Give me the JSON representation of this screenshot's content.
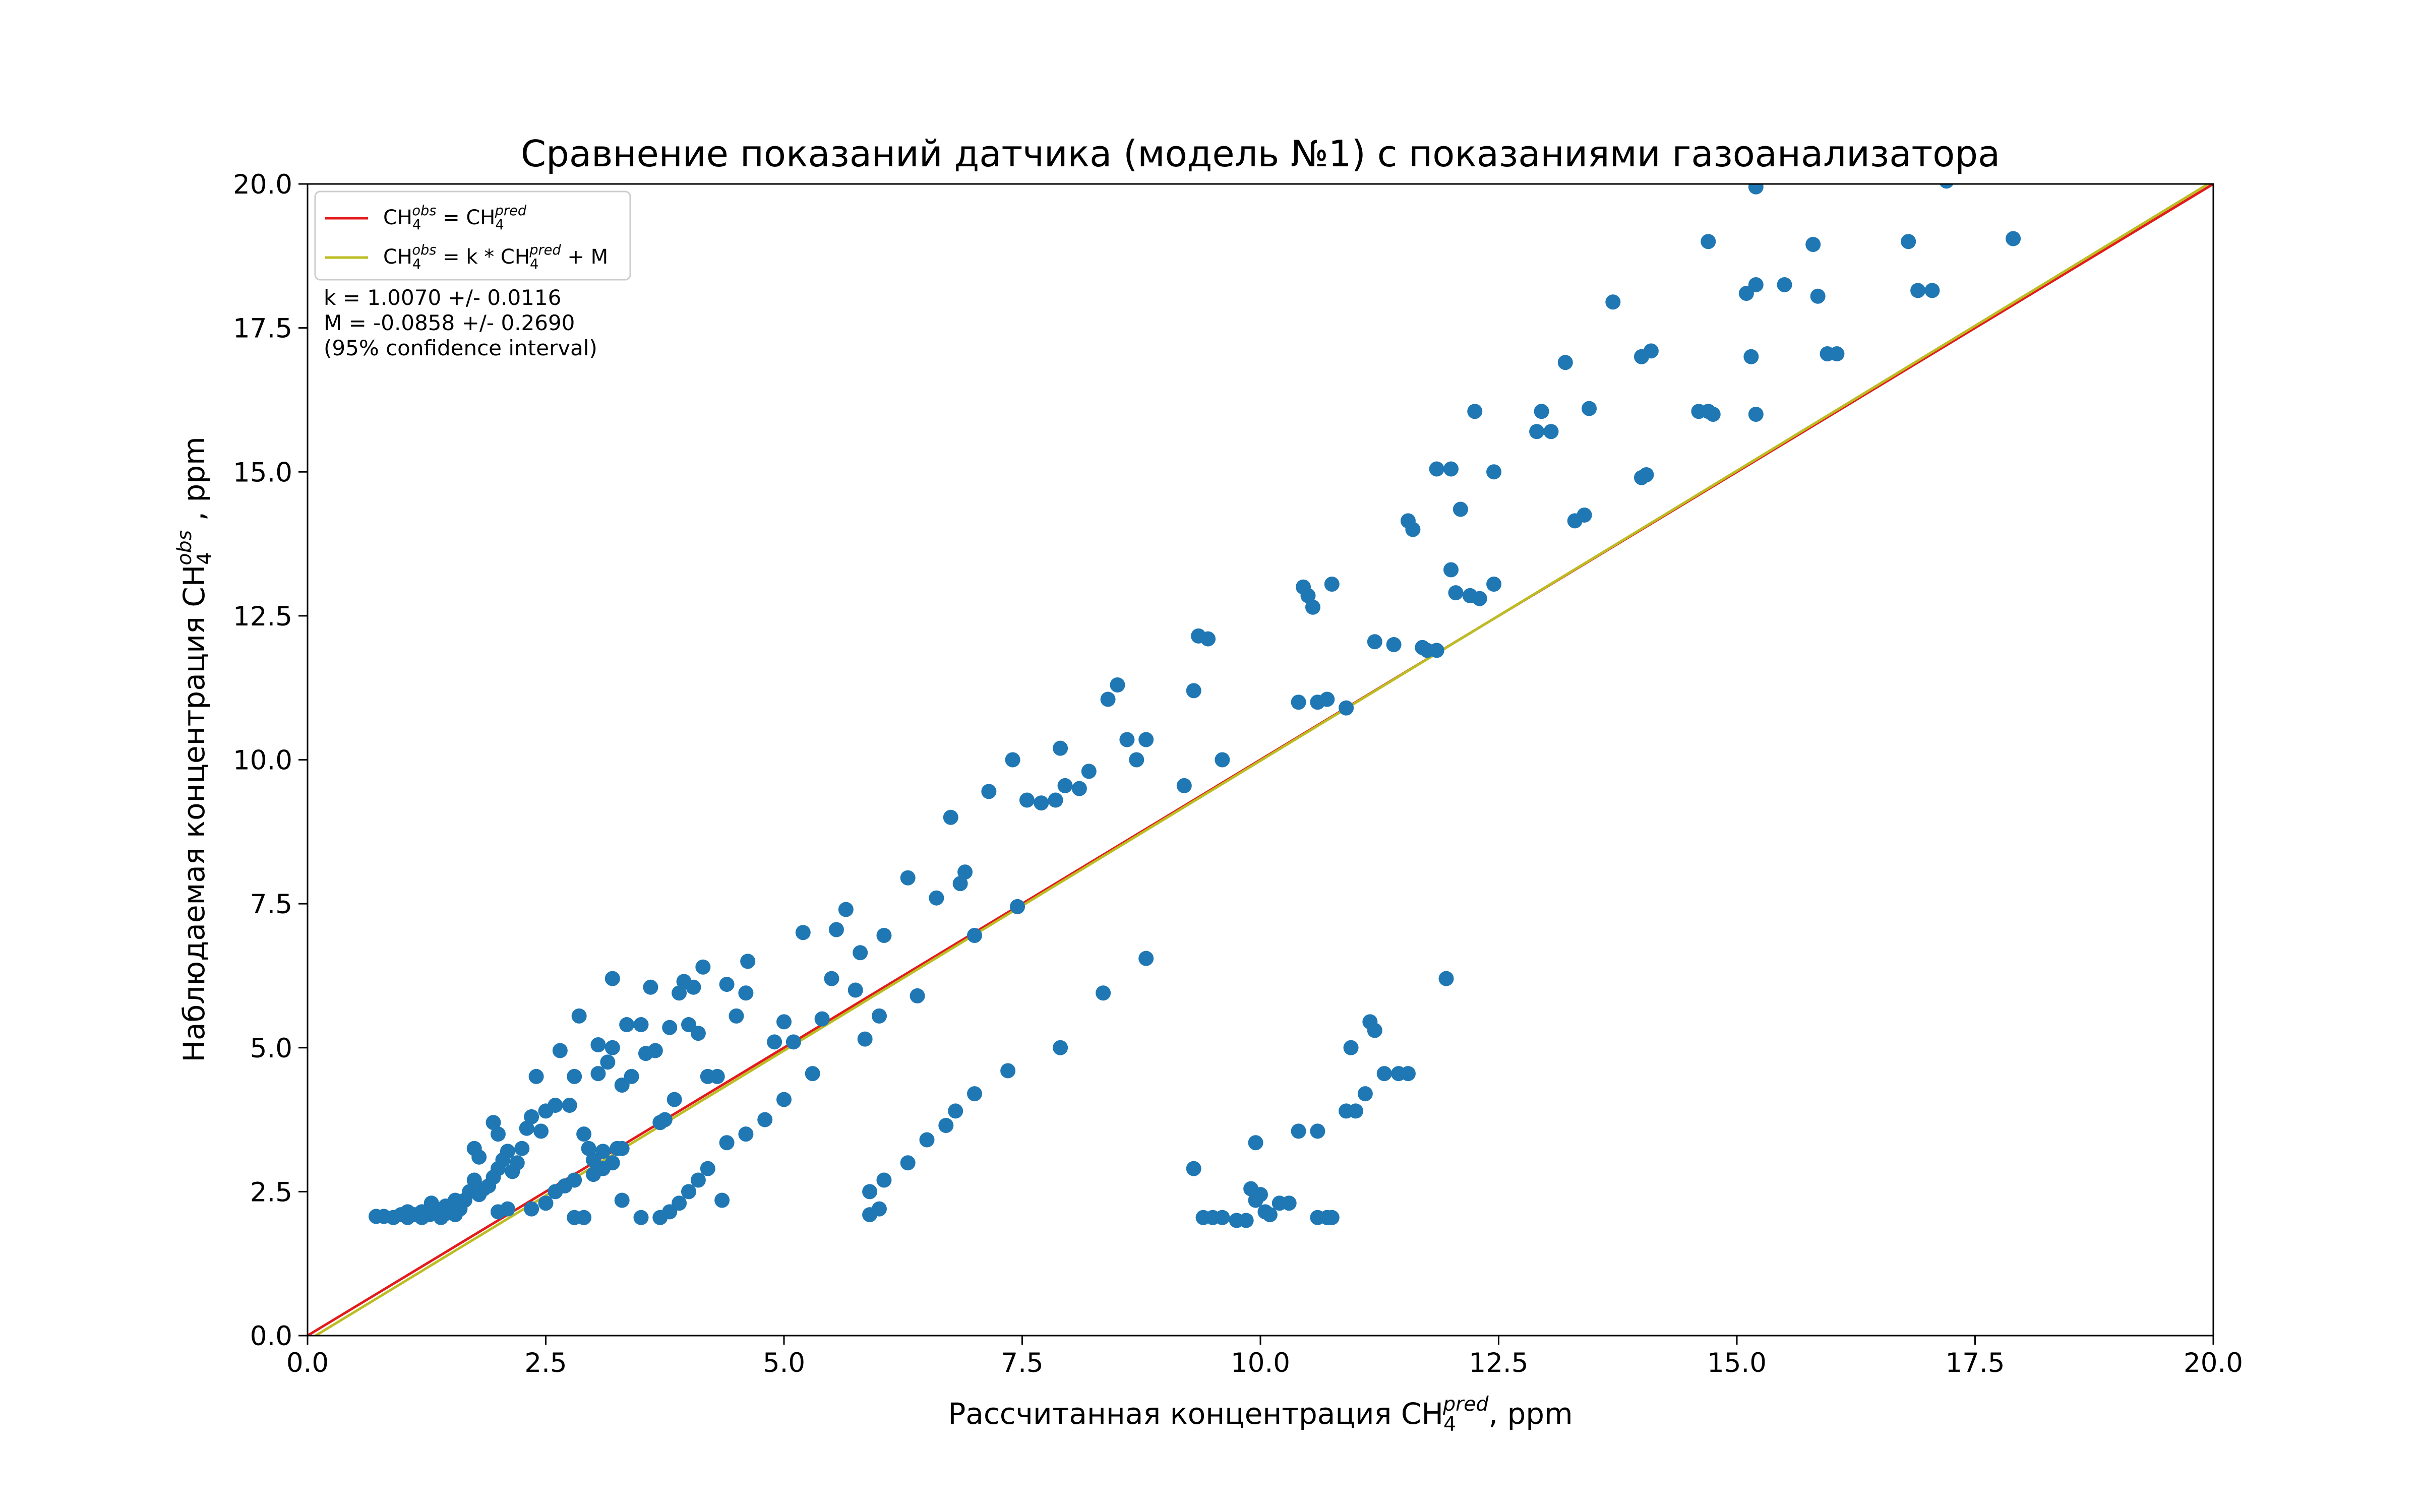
{
  "chart_data": {
    "type": "scatter",
    "title": "Сравнение показаний датчика (модель №1) с показаниями газоанализатора",
    "xlabel": {
      "prefix": "Рассчитанная концентрация CH",
      "sub": "4",
      "sup": "pred",
      "suffix": ", ppm"
    },
    "ylabel": {
      "prefix": "Наблюдаемая концентрация CH",
      "sub": "4",
      "sup": "obs",
      "suffix": " , ppm"
    },
    "xlim": [
      0,
      20
    ],
    "ylim": [
      0,
      20
    ],
    "xticks": [
      0,
      2.5,
      5,
      7.5,
      10,
      12.5,
      15,
      17.5,
      20
    ],
    "yticks": [
      0,
      2.5,
      5,
      7.5,
      10,
      12.5,
      15,
      17.5,
      20
    ],
    "xtick_labels": [
      "0.0",
      "2.5",
      "5.0",
      "7.5",
      "10.0",
      "12.5",
      "15.0",
      "17.5",
      "20.0"
    ],
    "ytick_labels": [
      "0.0",
      "2.5",
      "5.0",
      "7.5",
      "10.0",
      "12.5",
      "15.0",
      "17.5",
      "20.0"
    ],
    "grid": false,
    "legend_position": "top-left",
    "colors": {
      "points": "#1f77b4",
      "identity_line": "#e31a1c",
      "fit_line": "#bcbd22"
    },
    "legend": [
      {
        "kind": "identity",
        "parts": [
          {
            "t": "CH"
          },
          {
            "t": "4",
            "sub": true
          },
          {
            "t": "obs",
            "sup": true
          },
          {
            "t": " = CH"
          },
          {
            "t": "4",
            "sub": true
          },
          {
            "t": "pred",
            "sup": true
          }
        ]
      },
      {
        "kind": "fit",
        "parts": [
          {
            "t": "CH"
          },
          {
            "t": "4",
            "sub": true
          },
          {
            "t": "obs",
            "sup": true
          },
          {
            "t": " = k * CH"
          },
          {
            "t": "4",
            "sub": true
          },
          {
            "t": "pred",
            "sup": true
          },
          {
            "t": " + M"
          }
        ]
      }
    ],
    "lines": [
      {
        "kind": "identity",
        "k": 1.0,
        "m": 0.0
      },
      {
        "kind": "fit",
        "k": 1.007,
        "m": -0.0858
      }
    ],
    "annotations": [
      "k = 1.0070 +/- 0.0116",
      "M = -0.0858 +/- 0.2690",
      "(95% confidence interval)"
    ],
    "points": [
      [
        0.72,
        2.07
      ],
      [
        0.8,
        2.07
      ],
      [
        0.9,
        2.05
      ],
      [
        0.98,
        2.1
      ],
      [
        1.05,
        2.15
      ],
      [
        1.12,
        2.1
      ],
      [
        1.2,
        2.15
      ],
      [
        1.28,
        2.1
      ],
      [
        1.35,
        2.2
      ],
      [
        1.4,
        2.05
      ],
      [
        1.45,
        2.12
      ],
      [
        1.5,
        2.25
      ],
      [
        1.55,
        2.1
      ],
      [
        1.6,
        2.2
      ],
      [
        1.65,
        2.35
      ],
      [
        1.7,
        2.5
      ],
      [
        1.75,
        2.7
      ],
      [
        1.8,
        2.45
      ],
      [
        1.85,
        2.55
      ],
      [
        1.9,
        2.6
      ],
      [
        1.95,
        2.75
      ],
      [
        2.0,
        2.9
      ],
      [
        2.05,
        3.05
      ],
      [
        2.1,
        3.2
      ],
      [
        1.75,
        3.25
      ],
      [
        1.8,
        3.1
      ],
      [
        1.95,
        3.7
      ],
      [
        2.0,
        3.5
      ],
      [
        2.15,
        2.85
      ],
      [
        2.2,
        3.0
      ],
      [
        2.25,
        3.25
      ],
      [
        2.3,
        3.6
      ],
      [
        2.35,
        3.8
      ],
      [
        2.4,
        4.5
      ],
      [
        2.45,
        3.55
      ],
      [
        2.5,
        3.9
      ],
      [
        2.6,
        4.0
      ],
      [
        2.65,
        4.95
      ],
      [
        2.75,
        4.0
      ],
      [
        2.8,
        4.5
      ],
      [
        2.85,
        5.55
      ],
      [
        2.9,
        3.5
      ],
      [
        2.95,
        3.25
      ],
      [
        3.0,
        3.05
      ],
      [
        3.05,
        4.55
      ],
      [
        3.1,
        3.2
      ],
      [
        3.15,
        4.75
      ],
      [
        3.2,
        6.2
      ],
      [
        3.25,
        3.25
      ],
      [
        3.3,
        4.35
      ],
      [
        3.35,
        5.4
      ],
      [
        3.4,
        4.5
      ],
      [
        3.5,
        5.4
      ],
      [
        3.55,
        4.9
      ],
      [
        3.6,
        6.05
      ],
      [
        3.65,
        4.95
      ],
      [
        3.7,
        3.7
      ],
      [
        3.75,
        3.75
      ],
      [
        3.8,
        5.35
      ],
      [
        3.85,
        4.1
      ],
      [
        3.9,
        5.95
      ],
      [
        3.95,
        6.15
      ],
      [
        4.0,
        5.4
      ],
      [
        4.05,
        6.05
      ],
      [
        4.1,
        5.25
      ],
      [
        4.15,
        6.4
      ],
      [
        4.2,
        4.5
      ],
      [
        4.3,
        4.5
      ],
      [
        4.4,
        6.1
      ],
      [
        4.5,
        5.55
      ],
      [
        4.6,
        5.95
      ],
      [
        4.62,
        6.5
      ],
      [
        3.05,
        5.05
      ],
      [
        3.2,
        5.0
      ],
      [
        2.9,
        2.05
      ],
      [
        2.8,
        2.05
      ],
      [
        3.3,
        2.35
      ],
      [
        3.5,
        2.05
      ],
      [
        3.7,
        2.05
      ],
      [
        3.8,
        2.15
      ],
      [
        3.9,
        2.3
      ],
      [
        4.0,
        2.5
      ],
      [
        4.1,
        2.7
      ],
      [
        4.2,
        2.9
      ],
      [
        4.35,
        2.35
      ],
      [
        4.4,
        3.35
      ],
      [
        4.6,
        3.5
      ],
      [
        4.8,
        3.75
      ],
      [
        4.9,
        5.1
      ],
      [
        5.0,
        4.1
      ],
      [
        5.0,
        5.45
      ],
      [
        5.1,
        5.1
      ],
      [
        5.2,
        7.0
      ],
      [
        5.3,
        4.55
      ],
      [
        5.4,
        5.5
      ],
      [
        5.5,
        6.2
      ],
      [
        5.55,
        7.05
      ],
      [
        5.65,
        7.4
      ],
      [
        5.75,
        6.0
      ],
      [
        5.8,
        6.65
      ],
      [
        5.85,
        5.15
      ],
      [
        5.9,
        2.1
      ],
      [
        6.0,
        2.2
      ],
      [
        5.9,
        2.5
      ],
      [
        6.05,
        2.7
      ],
      [
        6.0,
        5.55
      ],
      [
        6.05,
        6.95
      ],
      [
        6.3,
        7.95
      ],
      [
        6.3,
        3.0
      ],
      [
        6.4,
        5.9
      ],
      [
        6.5,
        3.4
      ],
      [
        6.6,
        7.6
      ],
      [
        6.7,
        3.65
      ],
      [
        6.75,
        9.0
      ],
      [
        6.8,
        3.9
      ],
      [
        6.85,
        7.85
      ],
      [
        6.9,
        8.05
      ],
      [
        7.0,
        4.2
      ],
      [
        7.0,
        6.95
      ],
      [
        7.15,
        9.45
      ],
      [
        7.35,
        4.6
      ],
      [
        7.4,
        10.0
      ],
      [
        7.45,
        7.45
      ],
      [
        7.55,
        9.3
      ],
      [
        7.7,
        9.25
      ],
      [
        7.85,
        9.3
      ],
      [
        7.9,
        5.0
      ],
      [
        7.9,
        10.2
      ],
      [
        7.95,
        9.55
      ],
      [
        8.1,
        9.5
      ],
      [
        8.2,
        9.8
      ],
      [
        8.35,
        5.95
      ],
      [
        8.4,
        11.05
      ],
      [
        8.5,
        11.3
      ],
      [
        8.6,
        10.35
      ],
      [
        8.7,
        10.0
      ],
      [
        8.8,
        10.35
      ],
      [
        8.8,
        6.55
      ],
      [
        9.2,
        9.55
      ],
      [
        9.3,
        2.9
      ],
      [
        9.35,
        12.15
      ],
      [
        9.4,
        2.05
      ],
      [
        9.45,
        12.1
      ],
      [
        9.5,
        2.05
      ],
      [
        9.6,
        2.05
      ],
      [
        9.3,
        11.2
      ],
      [
        9.6,
        10.0
      ],
      [
        9.75,
        2.0
      ],
      [
        9.85,
        2.0
      ],
      [
        9.9,
        2.55
      ],
      [
        9.95,
        2.35
      ],
      [
        9.95,
        3.35
      ],
      [
        10.0,
        2.45
      ],
      [
        10.05,
        2.15
      ],
      [
        10.1,
        2.1
      ],
      [
        10.2,
        2.3
      ],
      [
        10.3,
        2.3
      ],
      [
        10.4,
        3.55
      ],
      [
        10.4,
        11.0
      ],
      [
        10.45,
        13.0
      ],
      [
        10.5,
        12.85
      ],
      [
        10.55,
        12.65
      ],
      [
        10.6,
        3.55
      ],
      [
        10.6,
        11.0
      ],
      [
        10.7,
        11.05
      ],
      [
        10.75,
        13.05
      ],
      [
        10.6,
        2.05
      ],
      [
        10.7,
        2.05
      ],
      [
        10.75,
        2.05
      ],
      [
        10.9,
        3.9
      ],
      [
        10.9,
        10.9
      ],
      [
        10.95,
        5.0
      ],
      [
        11.0,
        3.9
      ],
      [
        11.1,
        4.2
      ],
      [
        11.15,
        5.45
      ],
      [
        11.2,
        5.3
      ],
      [
        11.2,
        12.05
      ],
      [
        11.3,
        4.55
      ],
      [
        11.4,
        12.0
      ],
      [
        11.45,
        4.55
      ],
      [
        11.55,
        4.55
      ],
      [
        11.55,
        14.15
      ],
      [
        11.6,
        14.0
      ],
      [
        11.7,
        11.95
      ],
      [
        11.75,
        11.9
      ],
      [
        11.85,
        15.05
      ],
      [
        11.85,
        11.9
      ],
      [
        11.95,
        6.2
      ],
      [
        12.0,
        13.3
      ],
      [
        12.0,
        15.05
      ],
      [
        12.05,
        12.9
      ],
      [
        12.1,
        14.35
      ],
      [
        12.2,
        12.85
      ],
      [
        12.25,
        16.05
      ],
      [
        12.3,
        12.8
      ],
      [
        12.45,
        15.0
      ],
      [
        12.45,
        13.05
      ],
      [
        12.9,
        15.7
      ],
      [
        12.95,
        16.05
      ],
      [
        13.05,
        15.7
      ],
      [
        13.2,
        16.9
      ],
      [
        13.3,
        14.15
      ],
      [
        13.4,
        14.25
      ],
      [
        13.45,
        16.1
      ],
      [
        13.7,
        17.95
      ],
      [
        14.0,
        17.0
      ],
      [
        14.0,
        14.9
      ],
      [
        14.05,
        14.95
      ],
      [
        14.1,
        17.1
      ],
      [
        14.6,
        16.05
      ],
      [
        14.7,
        16.05
      ],
      [
        14.75,
        16.0
      ],
      [
        14.7,
        19.0
      ],
      [
        15.1,
        18.1
      ],
      [
        15.2,
        18.25
      ],
      [
        15.2,
        16.0
      ],
      [
        15.15,
        17.0
      ],
      [
        15.2,
        19.95
      ],
      [
        15.5,
        18.25
      ],
      [
        15.8,
        18.95
      ],
      [
        15.85,
        18.05
      ],
      [
        15.95,
        17.05
      ],
      [
        16.05,
        17.05
      ],
      [
        16.8,
        19.0
      ],
      [
        16.9,
        18.15
      ],
      [
        17.05,
        18.15
      ],
      [
        17.2,
        20.05
      ],
      [
        17.9,
        19.05
      ],
      [
        2.0,
        2.15
      ],
      [
        2.1,
        2.2
      ],
      [
        2.35,
        2.2
      ],
      [
        2.5,
        2.3
      ],
      [
        2.6,
        2.5
      ],
      [
        2.7,
        2.6
      ],
      [
        2.8,
        2.7
      ],
      [
        3.0,
        2.8
      ],
      [
        3.1,
        2.9
      ],
      [
        3.2,
        3.0
      ],
      [
        3.3,
        3.25
      ],
      [
        1.05,
        2.05
      ],
      [
        1.2,
        2.05
      ],
      [
        1.3,
        2.3
      ],
      [
        1.45,
        2.25
      ],
      [
        1.55,
        2.35
      ]
    ]
  }
}
